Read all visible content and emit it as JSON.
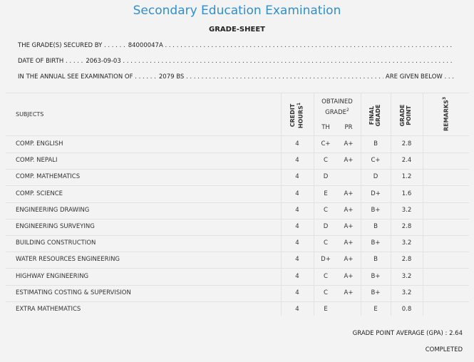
{
  "header": {
    "title": "Secondary Education Examination",
    "subtitle": "GRADE-SHEET"
  },
  "student": {
    "grades_label": "THE GRADE(S) SECURED BY . . . . . .",
    "symbol_no": "84000047A",
    "dob_label": "DATE OF BIRTH . . . . .",
    "dob": "2063-09-03",
    "exam_label": "IN THE ANNUAL SEE EXAMINATION OF . . . . . .",
    "exam_year": "2079 BS",
    "exam_tail": "ARE GIVEN BELOW . . ."
  },
  "table": {
    "headers": {
      "subjects": "SUBJECTS",
      "credit_line1": "CREDIT",
      "credit_line2": "HOURS",
      "credit_sup": "1",
      "obtained_line1": "OBTAINED",
      "obtained_line2": "GRADE",
      "obtained_sup": "2",
      "th": "TH",
      "pr": "PR",
      "final_line1": "FINAL",
      "final_line2": "GRADE",
      "point_line1": "GRADE",
      "point_line2": "POINT",
      "remarks": "REMARKS",
      "remarks_sup": "3"
    },
    "rows": [
      {
        "subject": "COMP. ENGLISH",
        "credit": "4",
        "th": "C+",
        "pr": "A+",
        "final": "B",
        "point": "2.8"
      },
      {
        "subject": "COMP. NEPALI",
        "credit": "4",
        "th": "C",
        "pr": "A+",
        "final": "C+",
        "point": "2.4"
      },
      {
        "subject": "COMP. MATHEMATICS",
        "credit": "4",
        "th": "D",
        "pr": "",
        "final": "D",
        "point": "1.2"
      },
      {
        "subject": "COMP. SCIENCE",
        "credit": "4",
        "th": "E",
        "pr": "A+",
        "final": "D+",
        "point": "1.6"
      },
      {
        "subject": "ENGINEERING DRAWING",
        "credit": "4",
        "th": "C",
        "pr": "A+",
        "final": "B+",
        "point": "3.2"
      },
      {
        "subject": "ENGINEERING SURVEYING",
        "credit": "4",
        "th": "D",
        "pr": "A+",
        "final": "B",
        "point": "2.8"
      },
      {
        "subject": "BUILDING CONSTRUCTION",
        "credit": "4",
        "th": "C",
        "pr": "A+",
        "final": "B+",
        "point": "3.2"
      },
      {
        "subject": "WATER RESOURCES ENGINEERING",
        "credit": "4",
        "th": "D+",
        "pr": "A+",
        "final": "B",
        "point": "2.8"
      },
      {
        "subject": "HIGHWAY ENGINEERING",
        "credit": "4",
        "th": "C",
        "pr": "A+",
        "final": "B+",
        "point": "3.2"
      },
      {
        "subject": "ESTIMATING COSTING & SUPERVISION",
        "credit": "4",
        "th": "C",
        "pr": "A+",
        "final": "B+",
        "point": "3.2"
      },
      {
        "subject": "EXTRA MATHEMATICS",
        "credit": "4",
        "th": "E",
        "pr": "",
        "final": "E",
        "point": "0.8"
      }
    ]
  },
  "footer": {
    "gpa_label": "GRADE POINT AVERAGE (GPA) :",
    "gpa": "2.64",
    "status": "COMPLETED"
  },
  "colors": {
    "title": "#2f8fd0",
    "background": "#f3f3f3",
    "rule": "#e2e2e2"
  }
}
